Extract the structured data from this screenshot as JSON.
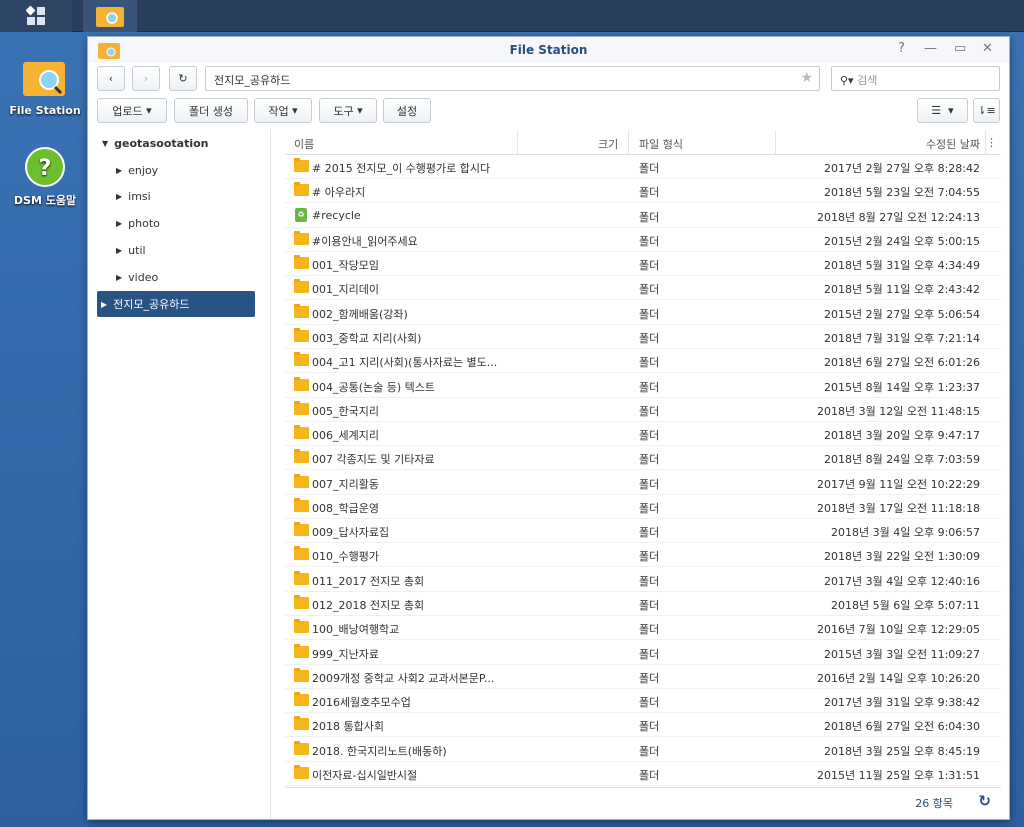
{
  "taskbar": {
    "main_menu": "main-menu",
    "active_app": "File Station"
  },
  "desktop": [
    {
      "label": "File Station",
      "icon": "file-station-icon"
    },
    {
      "label": "DSM 도움말",
      "icon": "help-icon"
    }
  ],
  "window": {
    "title": "File Station",
    "path": "전지모_공유하드",
    "search_placeholder": "검색"
  },
  "toolbar": {
    "upload": "업로드",
    "create_folder": "폴더 생성",
    "action": "작업",
    "tools": "도구",
    "settings": "설정"
  },
  "sidebar": {
    "root": "geotasootation",
    "items": [
      "enjoy",
      "imsi",
      "photo",
      "util",
      "video",
      "전지모_공유하드"
    ],
    "selected": "전지모_공유하드"
  },
  "columns": {
    "name": "이름",
    "size": "크기",
    "type": "파일 형식",
    "modified": "수정된 날짜"
  },
  "files": [
    {
      "name": "# 2015 전지모_이 수행평가로 합시다",
      "type": "폴더",
      "date": "2017년 2월 27일 오후 8:28:42"
    },
    {
      "name": "# 아우라지",
      "type": "폴더",
      "date": "2018년 5월 23일 오전 7:04:55"
    },
    {
      "name": "#recycle",
      "type": "폴더",
      "date": "2018년 8월 27일 오전 12:24:13",
      "recycle": true
    },
    {
      "name": "#이용안내_읽어주세요",
      "type": "폴더",
      "date": "2015년 2월 24일 오후 5:00:15"
    },
    {
      "name": "001_작당모임",
      "type": "폴더",
      "date": "2018년 5월 31일 오후 4:34:49"
    },
    {
      "name": "001_지리데이",
      "type": "폴더",
      "date": "2018년 5월 11일 오후 2:43:42"
    },
    {
      "name": "002_함께배움(강좌)",
      "type": "폴더",
      "date": "2015년 2월 27일 오후 5:06:54"
    },
    {
      "name": "003_중학교 지리(사회)",
      "type": "폴더",
      "date": "2018년 7월 31일 오후 7:21:14"
    },
    {
      "name": "004_고1 지리(사회)(통사자료는 별도...",
      "type": "폴더",
      "date": "2018년 6월 27일 오전 6:01:26"
    },
    {
      "name": "004_공통(논술 등) 텍스트",
      "type": "폴더",
      "date": "2015년 8월 14일 오후 1:23:37"
    },
    {
      "name": "005_한국지리",
      "type": "폴더",
      "date": "2018년 3월 12일 오전 11:48:15"
    },
    {
      "name": "006_세계지리",
      "type": "폴더",
      "date": "2018년 3월 20일 오후 9:47:17"
    },
    {
      "name": "007 각종지도 및 기타자료",
      "type": "폴더",
      "date": "2018년 8월 24일 오후 7:03:59"
    },
    {
      "name": "007_지리활동",
      "type": "폴더",
      "date": "2017년 9월 11일 오전 10:22:29"
    },
    {
      "name": "008_학급운영",
      "type": "폴더",
      "date": "2018년 3월 17일 오전 11:18:18"
    },
    {
      "name": "009_답사자료집",
      "type": "폴더",
      "date": "2018년 3월 4일 오후 9:06:57"
    },
    {
      "name": "010_수행평가",
      "type": "폴더",
      "date": "2018년 3월 22일 오전 1:30:09"
    },
    {
      "name": "011_2017 전지모 총회",
      "type": "폴더",
      "date": "2017년 3월 4일 오후 12:40:16"
    },
    {
      "name": "012_2018 전지모 총회",
      "type": "폴더",
      "date": "2018년 5월 6일 오후 5:07:11"
    },
    {
      "name": "100_배낭여행학교",
      "type": "폴더",
      "date": "2016년 7월 10일 오후 12:29:05"
    },
    {
      "name": "999_지난자료",
      "type": "폴더",
      "date": "2015년 3월 3일 오전 11:09:27"
    },
    {
      "name": "2009개정 중학교 사회2 교과서본문P...",
      "type": "폴더",
      "date": "2016년 2월 14일 오후 10:26:20"
    },
    {
      "name": "2016세월호추모수업",
      "type": "폴더",
      "date": "2017년 3월 31일 오후 9:38:42"
    },
    {
      "name": "2018 통합사회",
      "type": "폴더",
      "date": "2018년 6월 27일 오전 6:04:30"
    },
    {
      "name": "2018. 한국지리노트(배동하)",
      "type": "폴더",
      "date": "2018년 3월 25일 오후 8:45:19"
    },
    {
      "name": "이전자료-십시일반시절",
      "type": "폴더",
      "date": "2015년 11월 25일 오후 1:31:51"
    }
  ],
  "footer": {
    "count": "26 항목"
  }
}
